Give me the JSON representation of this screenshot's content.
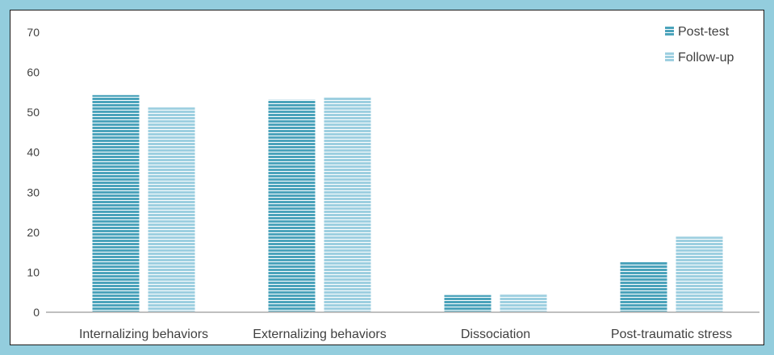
{
  "chart_data": {
    "type": "bar",
    "categories": [
      "Internalizing behaviors",
      "Externalizing behaviors",
      "Dissociation",
      "Post-traumatic stress"
    ],
    "series": [
      {
        "name": "Post-test",
        "values": [
          54.3,
          53.1,
          4.3,
          12.6
        ],
        "color": "#4ba3bb"
      },
      {
        "name": "Follow-up",
        "values": [
          51.2,
          53.8,
          4.4,
          18.9
        ],
        "color": "#9dcfe0"
      }
    ],
    "ylim": [
      0,
      70
    ],
    "yticks": [
      "0",
      "10",
      "20",
      "30",
      "40",
      "50",
      "60",
      "70"
    ],
    "grid": false,
    "legend_position": "top-right",
    "bar_pattern": "horizontal-stripes"
  }
}
